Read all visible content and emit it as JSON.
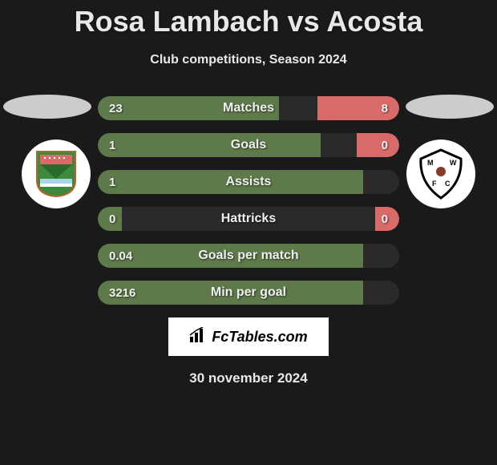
{
  "title": "Rosa Lambach vs Acosta",
  "subtitle": "Club competitions, Season 2024",
  "date": "30 november 2024",
  "logo_text": "FcTables.com",
  "colors": {
    "bar_left": "#5e7a4a",
    "bar_right": "#d96a6a",
    "bar_bg": "#2a2a2a",
    "page_bg": "#1a1a1a",
    "text": "#e8e8e8"
  },
  "stats": [
    {
      "label": "Matches",
      "left_val": "23",
      "right_val": "8",
      "left_pct": 60,
      "right_pct": 27
    },
    {
      "label": "Goals",
      "left_val": "1",
      "right_val": "0",
      "left_pct": 74,
      "right_pct": 14
    },
    {
      "label": "Assists",
      "left_val": "1",
      "right_val": "",
      "left_pct": 88,
      "right_pct": 0
    },
    {
      "label": "Hattricks",
      "left_val": "0",
      "right_val": "0",
      "left_pct": 8,
      "right_pct": 8
    },
    {
      "label": "Goals per match",
      "left_val": "0.04",
      "right_val": "",
      "left_pct": 88,
      "right_pct": 0
    },
    {
      "label": "Min per goal",
      "left_val": "3216",
      "right_val": "",
      "left_pct": 88,
      "right_pct": 0
    }
  ],
  "team_left": {
    "name": "left-club"
  },
  "team_right": {
    "name": "right-club"
  }
}
